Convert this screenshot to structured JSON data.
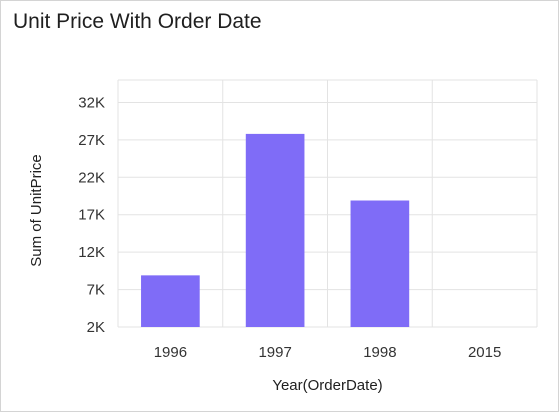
{
  "widget": {
    "title": "Unit Price With Order Date"
  },
  "chart_data": {
    "type": "bar",
    "title": "Unit Price With Order Date",
    "xlabel": "Year(OrderDate)",
    "ylabel": "Sum of UnitPrice",
    "categories": [
      "1996",
      "1997",
      "1998",
      "2015"
    ],
    "values": [
      8900,
      27800,
      18900,
      0
    ],
    "ylim": [
      2000,
      35000
    ],
    "yticks": [
      2000,
      7000,
      12000,
      17000,
      22000,
      27000,
      32000
    ],
    "ytick_labels": [
      "2K",
      "7K",
      "12K",
      "17K",
      "22K",
      "27K",
      "32K"
    ],
    "bar_color": "#7f6cf7",
    "grid": true
  }
}
